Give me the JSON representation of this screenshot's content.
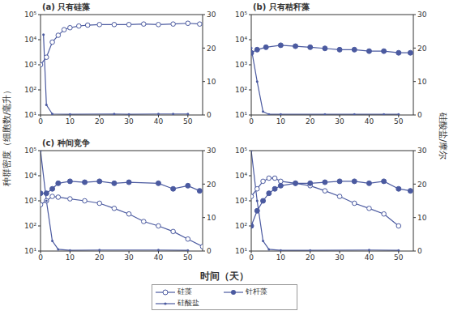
{
  "x_label": "时间（天）",
  "y_label": "种群密度（细胞数/毫升）",
  "y2_label": "硅酸盐/摩尔",
  "legend": "bottom",
  "chart_data": [
    {
      "type": "line",
      "title": "(a) 只有硅藻",
      "log": "y",
      "xlim": [
        0,
        55
      ],
      "xticks": [
        0,
        10,
        20,
        30,
        40,
        50
      ],
      "ylim": [
        10,
        100000
      ],
      "yticks": [
        {
          "value": 10,
          "label": "10¹"
        },
        {
          "value": 100,
          "label": "10²"
        },
        {
          "value": 1000,
          "label": "10³"
        },
        {
          "value": 10000,
          "label": "10⁴"
        },
        {
          "value": 100000,
          "label": "10⁵"
        }
      ],
      "y2lim": [
        0,
        30
      ],
      "y2ticks": [
        0,
        10,
        20,
        30
      ],
      "series": [
        {
          "name": "硅藻",
          "color": "#4b5aa0",
          "marker": "open_circle",
          "x": [
            0,
            2,
            4,
            6,
            8,
            10,
            13,
            16,
            20,
            25,
            30,
            35,
            40,
            45,
            50,
            54
          ],
          "values": [
            1000,
            2000,
            8000,
            15000,
            25000,
            30000,
            35000,
            38000,
            40000,
            40000,
            40000,
            42000,
            40000,
            42000,
            45000,
            42000
          ]
        },
        {
          "name": "硅酸盐",
          "color": "#4b5aa0",
          "marker": "dot",
          "axis": "y2",
          "x": [
            1,
            2,
            4,
            10,
            25,
            30,
            40,
            45,
            50
          ],
          "values": [
            24,
            3,
            0.3,
            0.2,
            0.3,
            0.2,
            0.3,
            0.3,
            0.3
          ]
        }
      ]
    },
    {
      "type": "line",
      "title": "(b) 只有秸秆藻",
      "log": "y",
      "xlim": [
        0,
        55
      ],
      "xticks": [
        0,
        10,
        20,
        30,
        40,
        50
      ],
      "ylim": [
        10,
        100000
      ],
      "yticks": [
        {
          "value": 10,
          "label": "10¹"
        },
        {
          "value": 100,
          "label": "10²"
        },
        {
          "value": 1000,
          "label": "10³"
        },
        {
          "value": 10000,
          "label": "10⁴"
        },
        {
          "value": 100000,
          "label": "10⁵"
        }
      ],
      "y2lim": [
        0,
        30
      ],
      "y2ticks": [
        0,
        10,
        20,
        30
      ],
      "series": [
        {
          "name": "针杆藻",
          "color": "#4b5aa0",
          "marker": "filled_circle",
          "x": [
            0,
            2,
            5,
            10,
            15,
            20,
            25,
            30,
            35,
            40,
            45,
            50,
            54
          ],
          "values": [
            3000,
            4000,
            5000,
            6000,
            5500,
            5000,
            4500,
            4000,
            4000,
            3500,
            3500,
            3000,
            3000
          ]
        },
        {
          "name": "硅酸盐",
          "color": "#4b5aa0",
          "marker": "dot",
          "axis": "y2",
          "x": [
            0,
            2,
            4,
            6,
            10,
            25,
            35,
            45,
            50
          ],
          "values": [
            20,
            10,
            1,
            0.2,
            0.2,
            0.2,
            0.2,
            0.2,
            0.2
          ]
        }
      ]
    },
    {
      "type": "line",
      "title": "(c) 种间竞争",
      "log": "y",
      "xlim": [
        0,
        55
      ],
      "xticks": [
        0,
        10,
        20,
        30,
        40,
        50
      ],
      "ylim": [
        10,
        100000
      ],
      "yticks": [
        {
          "value": 10,
          "label": "10¹"
        },
        {
          "value": 100,
          "label": "10²"
        },
        {
          "value": 1000,
          "label": "10³"
        },
        {
          "value": 10000,
          "label": "10⁴"
        },
        {
          "value": 100000,
          "label": "10⁵"
        }
      ],
      "y2lim": [
        0,
        30
      ],
      "y2ticks": [
        0,
        10,
        20,
        30
      ],
      "series": [
        {
          "name": "硅藻",
          "color": "#4b5aa0",
          "marker": "open_circle",
          "x": [
            0,
            2,
            4,
            6,
            10,
            15,
            20,
            25,
            30,
            35,
            40,
            45,
            50,
            55
          ],
          "values": [
            700,
            1000,
            1500,
            1400,
            1200,
            1000,
            800,
            500,
            300,
            150,
            100,
            60,
            30,
            15
          ]
        },
        {
          "name": "针杆藻",
          "color": "#4b5aa0",
          "marker": "filled_circle",
          "x": [
            0,
            2,
            4,
            6,
            10,
            15,
            20,
            25,
            30,
            40,
            45,
            50,
            54
          ],
          "values": [
            2000,
            2000,
            3000,
            5000,
            6000,
            5500,
            6000,
            5000,
            5500,
            5000,
            3000,
            4000,
            2500
          ]
        },
        {
          "name": "硅酸盐",
          "color": "#4b5aa0",
          "marker": "dot",
          "axis": "y2",
          "x": [
            0,
            2,
            4,
            6,
            10,
            20,
            40,
            50
          ],
          "values": [
            30,
            15,
            3,
            0.5,
            0.2,
            0.3,
            0.3,
            0.2
          ]
        }
      ]
    },
    {
      "type": "line",
      "log": "y",
      "xlim": [
        0,
        55
      ],
      "xticks": [
        0,
        10,
        20,
        30,
        40,
        50
      ],
      "ylim": [
        10,
        100000
      ],
      "yticks": [
        {
          "value": 10,
          "label": "10¹"
        },
        {
          "value": 100,
          "label": "10²"
        },
        {
          "value": 1000,
          "label": "10³"
        },
        {
          "value": 10000,
          "label": "10⁴"
        },
        {
          "value": 100000,
          "label": "10⁵"
        }
      ],
      "y2lim": [
        0,
        30
      ],
      "y2ticks": [
        0,
        10,
        20,
        30
      ],
      "series": [
        {
          "name": "硅藻",
          "color": "#4b5aa0",
          "marker": "open_circle",
          "x": [
            0,
            2,
            4,
            6,
            8,
            10,
            15,
            20,
            25,
            30,
            35,
            40,
            45,
            50
          ],
          "values": [
            1500,
            3000,
            6000,
            8000,
            8000,
            6000,
            5000,
            4000,
            2500,
            1500,
            800,
            500,
            300,
            100
          ]
        },
        {
          "name": "针杆藻",
          "color": "#4b5aa0",
          "marker": "filled_circle",
          "x": [
            0,
            2,
            4,
            6,
            8,
            10,
            15,
            20,
            25,
            30,
            35,
            40,
            45,
            50,
            54
          ],
          "values": [
            100,
            400,
            1000,
            2000,
            3000,
            4000,
            5000,
            5000,
            5500,
            6000,
            6000,
            5000,
            6000,
            3000,
            2500
          ]
        },
        {
          "name": "硅酸盐",
          "color": "#4b5aa0",
          "marker": "dot",
          "axis": "y2",
          "x": [
            0,
            2,
            4,
            6,
            10,
            20,
            40,
            50
          ],
          "values": [
            30,
            15,
            3,
            0.5,
            0.2,
            0.2,
            0.3,
            0.2
          ]
        }
      ]
    }
  ]
}
